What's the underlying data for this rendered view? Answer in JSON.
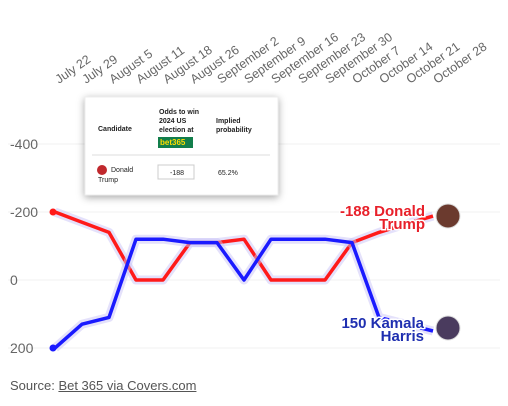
{
  "chart_data": {
    "type": "line",
    "categories": [
      "July 22",
      "July 29",
      "August 5",
      "August 11",
      "August 18",
      "August 26",
      "September 2",
      "September 9",
      "September 16",
      "September 23",
      "September 30",
      "October 7",
      "October 14",
      "October 21",
      "October 28"
    ],
    "series": [
      {
        "color": "#ff1a1a",
        "values": [
          -200,
          -170,
          -140,
          0,
          0,
          -110,
          -110,
          -120,
          0,
          0,
          0,
          -110,
          -140,
          -165,
          -188
        ]
      },
      {
        "color": "#1a1aff",
        "values": [
          200,
          130,
          110,
          -120,
          -120,
          -110,
          -110,
          0,
          -120,
          -120,
          -120,
          -110,
          110,
          130,
          150
        ]
      }
    ],
    "ylim": [
      250,
      -550
    ],
    "yticks": [
      -400,
      -200,
      0,
      200
    ],
    "grid": true,
    "annotations": [
      {
        "lines": [
          "-188 Donald",
          "Trump"
        ],
        "color": "#e8202a"
      },
      {
        "lines": [
          "150 Kamala",
          "Harris"
        ],
        "color": "#1f2fb0"
      }
    ]
  },
  "inset": {
    "header": [
      "Candidate",
      "Odds to win",
      "2024 US",
      "election at",
      "bet365",
      "Implied",
      "probability"
    ],
    "row": [
      "Donald",
      "Trump",
      "-188",
      "65.2%"
    ]
  },
  "source": {
    "prefix": "Source:",
    "link": "Bet 365 via Covers.com"
  }
}
